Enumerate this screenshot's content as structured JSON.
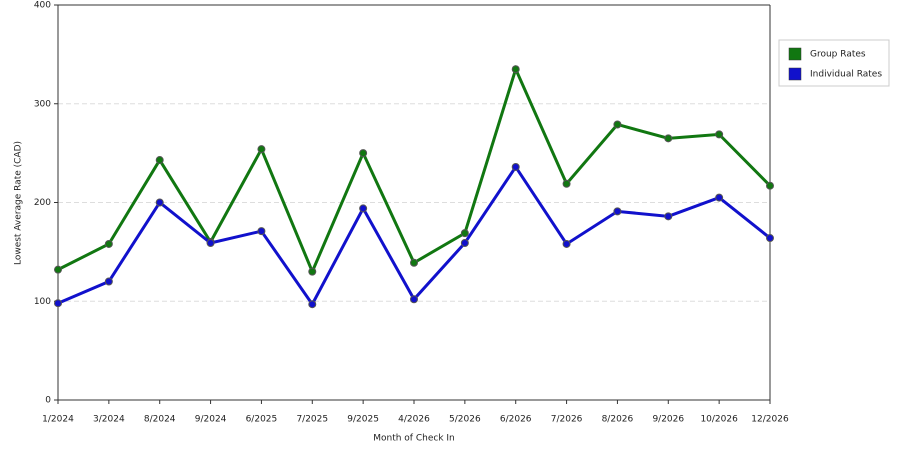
{
  "chart_data": {
    "type": "line",
    "x_label": "Month of Check In",
    "y_label": "Lowest Average Rate (CAD)",
    "categories": [
      "1/2024",
      "3/2024",
      "8/2024",
      "9/2024",
      "6/2025",
      "7/2025",
      "9/2025",
      "4/2026",
      "5/2026",
      "6/2026",
      "7/2026",
      "8/2026",
      "9/2026",
      "10/2026",
      "12/2026"
    ],
    "series": [
      {
        "name": "Group Rates",
        "color": "#117711",
        "values": [
          132,
          158,
          243,
          160,
          254,
          130,
          250,
          139,
          169,
          335,
          219,
          279,
          265,
          269,
          217
        ]
      },
      {
        "name": "Individual Rates",
        "color": "#1111cc",
        "values": [
          98,
          120,
          200,
          159,
          171,
          97,
          194,
          102,
          159,
          236,
          158,
          191,
          186,
          205,
          164
        ]
      }
    ],
    "ylim": [
      0,
      400
    ],
    "yticks": [
      0,
      100,
      200,
      300,
      400
    ],
    "grid": true,
    "legend": "right"
  }
}
